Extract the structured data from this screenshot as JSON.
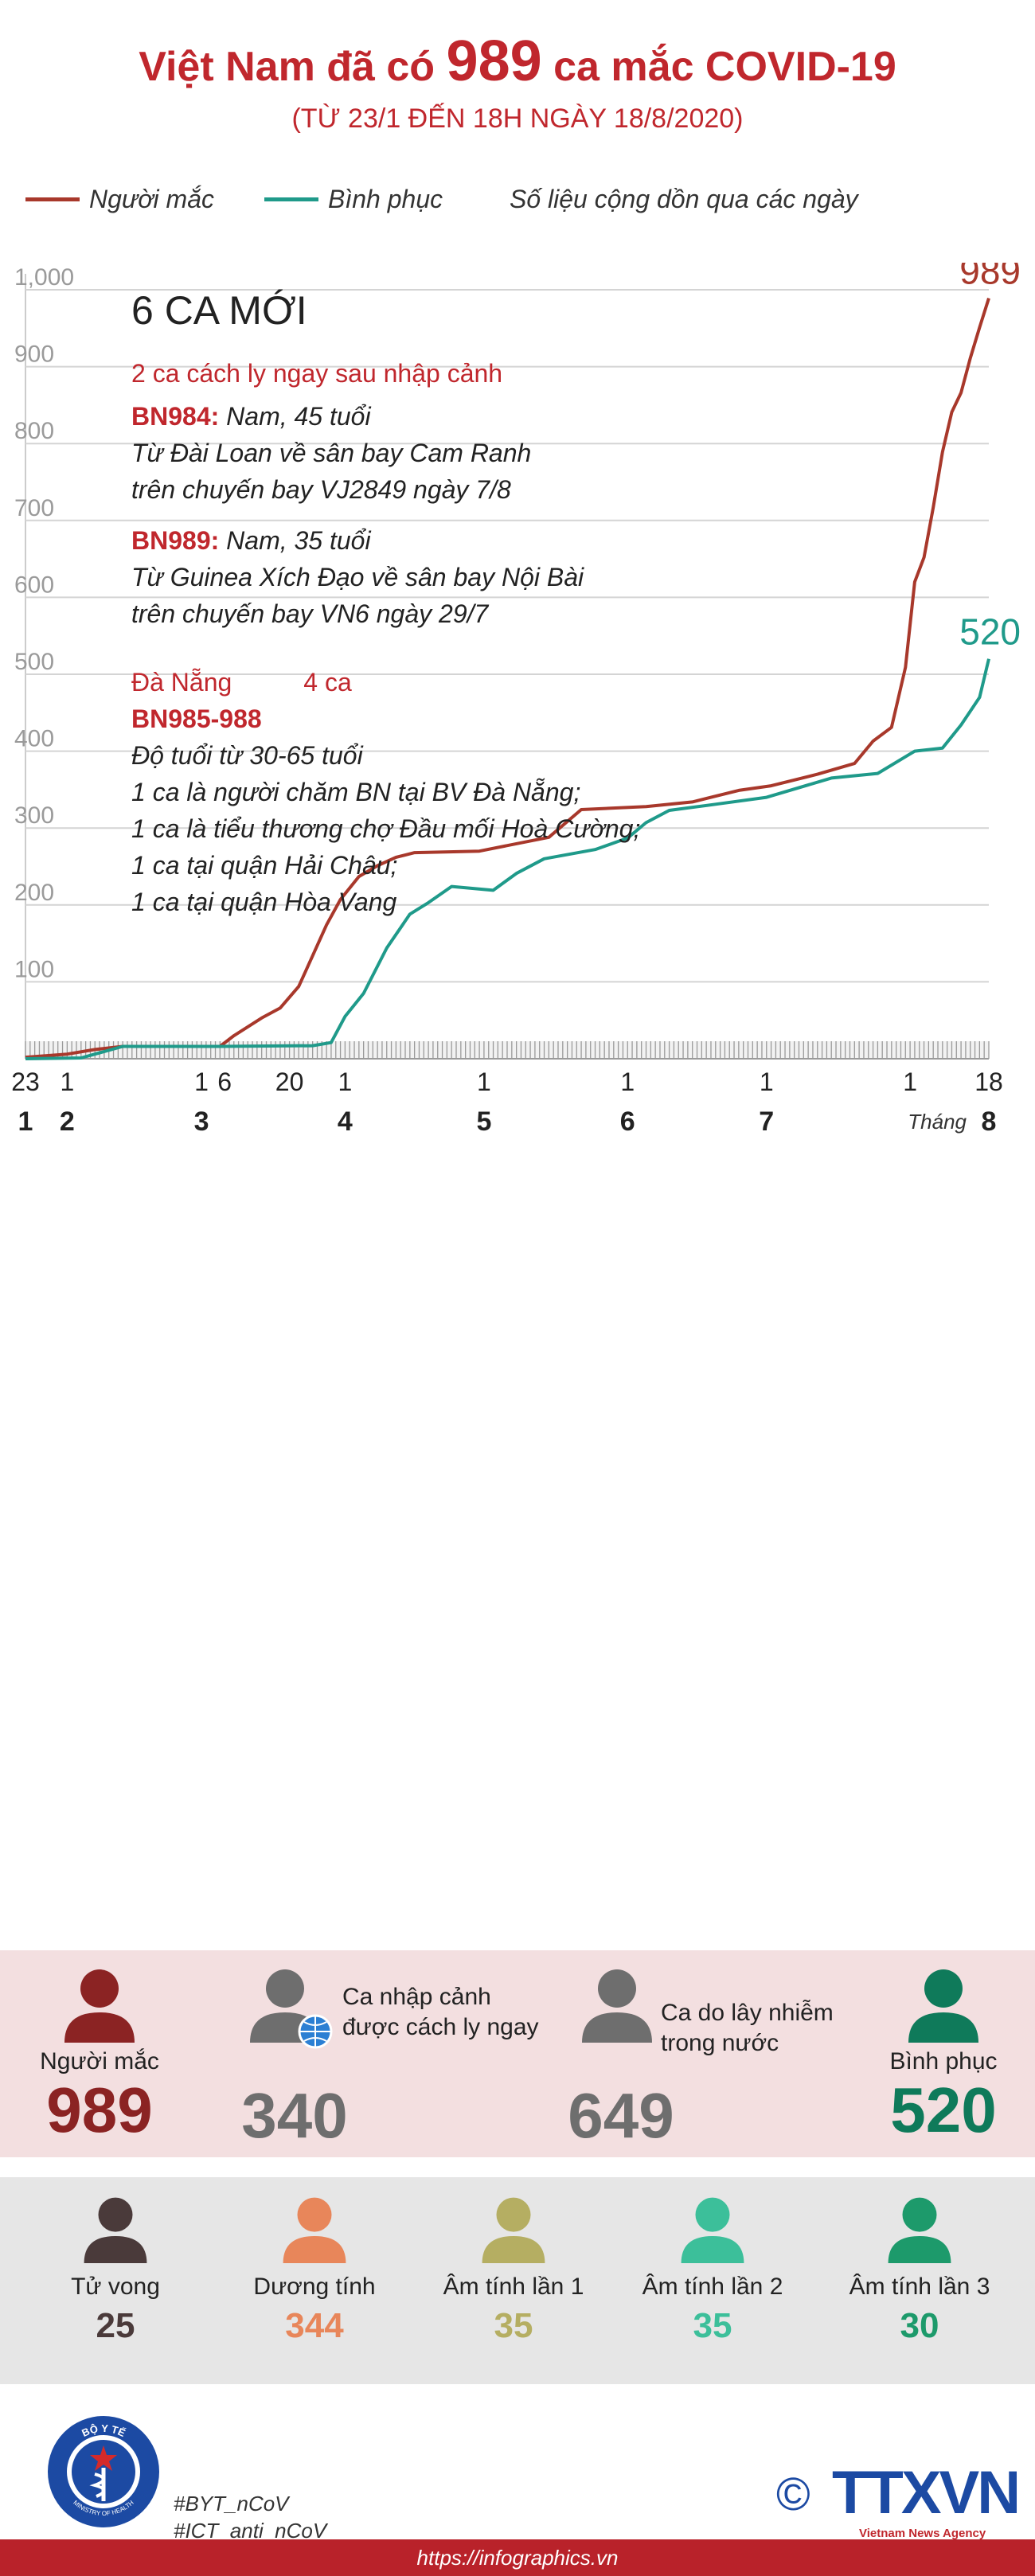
{
  "header": {
    "title_prefix": "Việt Nam đã có",
    "title_number": "989",
    "title_suffix": "ca mắc COVID-19",
    "subtitle": "(TỪ 23/1 ĐẾN 18H NGÀY 18/8/2020)"
  },
  "legend": {
    "cases_label": "Người mắc",
    "recovered_label": "Bình phục",
    "note": "Số liệu cộng dồn qua các ngày"
  },
  "info": {
    "heading": "6 CA MỚI",
    "group1": "2 ca cách ly ngay sau nhập cảnh",
    "bn984_id": "BN984:",
    "bn984_line1": " Nam, 45 tuổi",
    "bn984_line2": "Từ Đài Loan về sân bay Cam Ranh",
    "bn984_line3": "trên chuyến bay VJ2849 ngày 7/8",
    "bn989_id": "BN989:",
    "bn989_line1": " Nam, 35 tuổi",
    "bn989_line2": "Từ Guinea Xích Đạo về sân bay Nội Bài",
    "bn989_line3": "trên chuyến bay VN6 ngày 29/7",
    "group2_place": "Đà Nẵng",
    "group2_count": "4 ca",
    "bn985_id": "BN985-988",
    "bn985_line1": "Độ tuổi từ 30-65 tuổi",
    "bn985_line2": "1 ca là người chăm BN tại BV Đà Nẵng;",
    "bn985_line3": "1 ca là tiểu thương chợ Đầu mối Hoà Cường;",
    "bn985_line4": "1 ca tại quận Hải Châu;",
    "bn985_line5": "1 ca tại quận Hòa Vang"
  },
  "chart_data": {
    "type": "line",
    "ylim": [
      0,
      1000
    ],
    "yticks": [
      0,
      100,
      200,
      300,
      400,
      500,
      600,
      700,
      800,
      900,
      1000
    ],
    "ytick_labels": [
      "",
      "100",
      "200",
      "300",
      "400",
      "500",
      "600",
      "700",
      "800",
      "900",
      "1,000"
    ],
    "x_start_date": "2020-01-23",
    "x_end_date": "2020-08-18",
    "day_labels": [
      {
        "date": "2020-01-23",
        "label": "23"
      },
      {
        "date": "2020-02-01",
        "label": "1"
      },
      {
        "date": "2020-03-01",
        "label": "1"
      },
      {
        "date": "2020-03-06",
        "label": "6"
      },
      {
        "date": "2020-03-20",
        "label": "20"
      },
      {
        "date": "2020-04-01",
        "label": "1"
      },
      {
        "date": "2020-05-01",
        "label": "1"
      },
      {
        "date": "2020-06-01",
        "label": "1"
      },
      {
        "date": "2020-07-01",
        "label": "1"
      },
      {
        "date": "2020-08-01",
        "label": "1"
      },
      {
        "date": "2020-08-18",
        "label": "18"
      }
    ],
    "month_labels": [
      {
        "date": "2020-01-23",
        "label": "1"
      },
      {
        "date": "2020-02-01",
        "label": "2"
      },
      {
        "date": "2020-03-01",
        "label": "3"
      },
      {
        "date": "2020-04-01",
        "label": "4"
      },
      {
        "date": "2020-05-01",
        "label": "5"
      },
      {
        "date": "2020-06-01",
        "label": "6"
      },
      {
        "date": "2020-07-01",
        "label": "7"
      },
      {
        "date": "2020-08-18",
        "label": "8"
      }
    ],
    "month_word": "Tháng",
    "series": [
      {
        "name": "Người mắc",
        "color": "#a8382b",
        "end_label": "989",
        "points": [
          [
            "2020-01-23",
            2
          ],
          [
            "2020-02-01",
            6
          ],
          [
            "2020-02-07",
            12
          ],
          [
            "2020-02-13",
            16
          ],
          [
            "2020-03-05",
            16
          ],
          [
            "2020-03-08",
            30
          ],
          [
            "2020-03-14",
            53
          ],
          [
            "2020-03-18",
            66
          ],
          [
            "2020-03-22",
            94
          ],
          [
            "2020-03-25",
            134
          ],
          [
            "2020-03-28",
            174
          ],
          [
            "2020-03-31",
            207
          ],
          [
            "2020-04-04",
            237
          ],
          [
            "2020-04-08",
            251
          ],
          [
            "2020-04-12",
            262
          ],
          [
            "2020-04-16",
            268
          ],
          [
            "2020-04-30",
            270
          ],
          [
            "2020-05-15",
            288
          ],
          [
            "2020-05-22",
            324
          ],
          [
            "2020-06-05",
            328
          ],
          [
            "2020-06-15",
            334
          ],
          [
            "2020-06-25",
            349
          ],
          [
            "2020-07-02",
            355
          ],
          [
            "2020-07-12",
            370
          ],
          [
            "2020-07-20",
            384
          ],
          [
            "2020-07-24",
            413
          ],
          [
            "2020-07-28",
            431
          ],
          [
            "2020-07-31",
            509
          ],
          [
            "2020-08-02",
            620
          ],
          [
            "2020-08-04",
            652
          ],
          [
            "2020-08-06",
            717
          ],
          [
            "2020-08-08",
            789
          ],
          [
            "2020-08-10",
            841
          ],
          [
            "2020-08-12",
            866
          ],
          [
            "2020-08-14",
            911
          ],
          [
            "2020-08-16",
            951
          ],
          [
            "2020-08-18",
            989
          ]
        ]
      },
      {
        "name": "Bình phục",
        "color": "#1f9a8a",
        "end_label": "520",
        "points": [
          [
            "2020-01-23",
            0
          ],
          [
            "2020-02-04",
            1
          ],
          [
            "2020-02-13",
            16
          ],
          [
            "2020-03-05",
            16
          ],
          [
            "2020-03-25",
            17
          ],
          [
            "2020-03-29",
            21
          ],
          [
            "2020-04-01",
            55
          ],
          [
            "2020-04-05",
            85
          ],
          [
            "2020-04-10",
            144
          ],
          [
            "2020-04-15",
            188
          ],
          [
            "2020-04-19",
            203
          ],
          [
            "2020-04-24",
            224
          ],
          [
            "2020-05-03",
            219
          ],
          [
            "2020-05-08",
            241
          ],
          [
            "2020-05-14",
            260
          ],
          [
            "2020-05-25",
            272
          ],
          [
            "2020-06-01",
            287
          ],
          [
            "2020-06-05",
            307
          ],
          [
            "2020-06-10",
            323
          ],
          [
            "2020-06-20",
            331
          ],
          [
            "2020-07-01",
            340
          ],
          [
            "2020-07-15",
            365
          ],
          [
            "2020-07-25",
            371
          ],
          [
            "2020-08-02",
            400
          ],
          [
            "2020-08-08",
            404
          ],
          [
            "2020-08-12",
            434
          ],
          [
            "2020-08-16",
            470
          ],
          [
            "2020-08-18",
            520
          ]
        ]
      }
    ]
  },
  "summary": {
    "cases_label": "Người mắc",
    "cases_value": "989",
    "imported_label_1": "Ca nhập cảnh",
    "imported_label_2": "được cách ly ngay",
    "imported_value": "340",
    "local_label_1": "Ca do lây nhiễm",
    "local_label_2": "trong nước",
    "local_value": "649",
    "recovered_label": "Bình phục",
    "recovered_value": "520"
  },
  "status": [
    {
      "label": "Tử vong",
      "value": "25",
      "color": "#4a3a3a"
    },
    {
      "label": "Dương tính",
      "value": "344",
      "color": "#e8865a"
    },
    {
      "label": "Âm tính lần 1",
      "value": "35",
      "color": "#b5ae62"
    },
    {
      "label": "Âm tính lần 2",
      "value": "35",
      "color": "#3cbf9a"
    },
    {
      "label": "Âm tính lần 3",
      "value": "30",
      "color": "#1d9a6b"
    }
  ],
  "colors": {
    "accent_red": "#c0272d",
    "cases_dark": "#8b2323",
    "grey": "#6e6e6e",
    "green": "#0f7a5a"
  },
  "footer": {
    "logo_text_top": "BỘ Y TẾ",
    "logo_text_bottom": "MINISTRY OF HEALTH",
    "hashtag1": "#BYT_nCoV",
    "hashtag2": "#ICT_anti_nCoV",
    "copyright": "©",
    "agency_logo": "TTXVN",
    "agency_name": "Vietnam News Agency",
    "website": "https://infographics.vn"
  }
}
